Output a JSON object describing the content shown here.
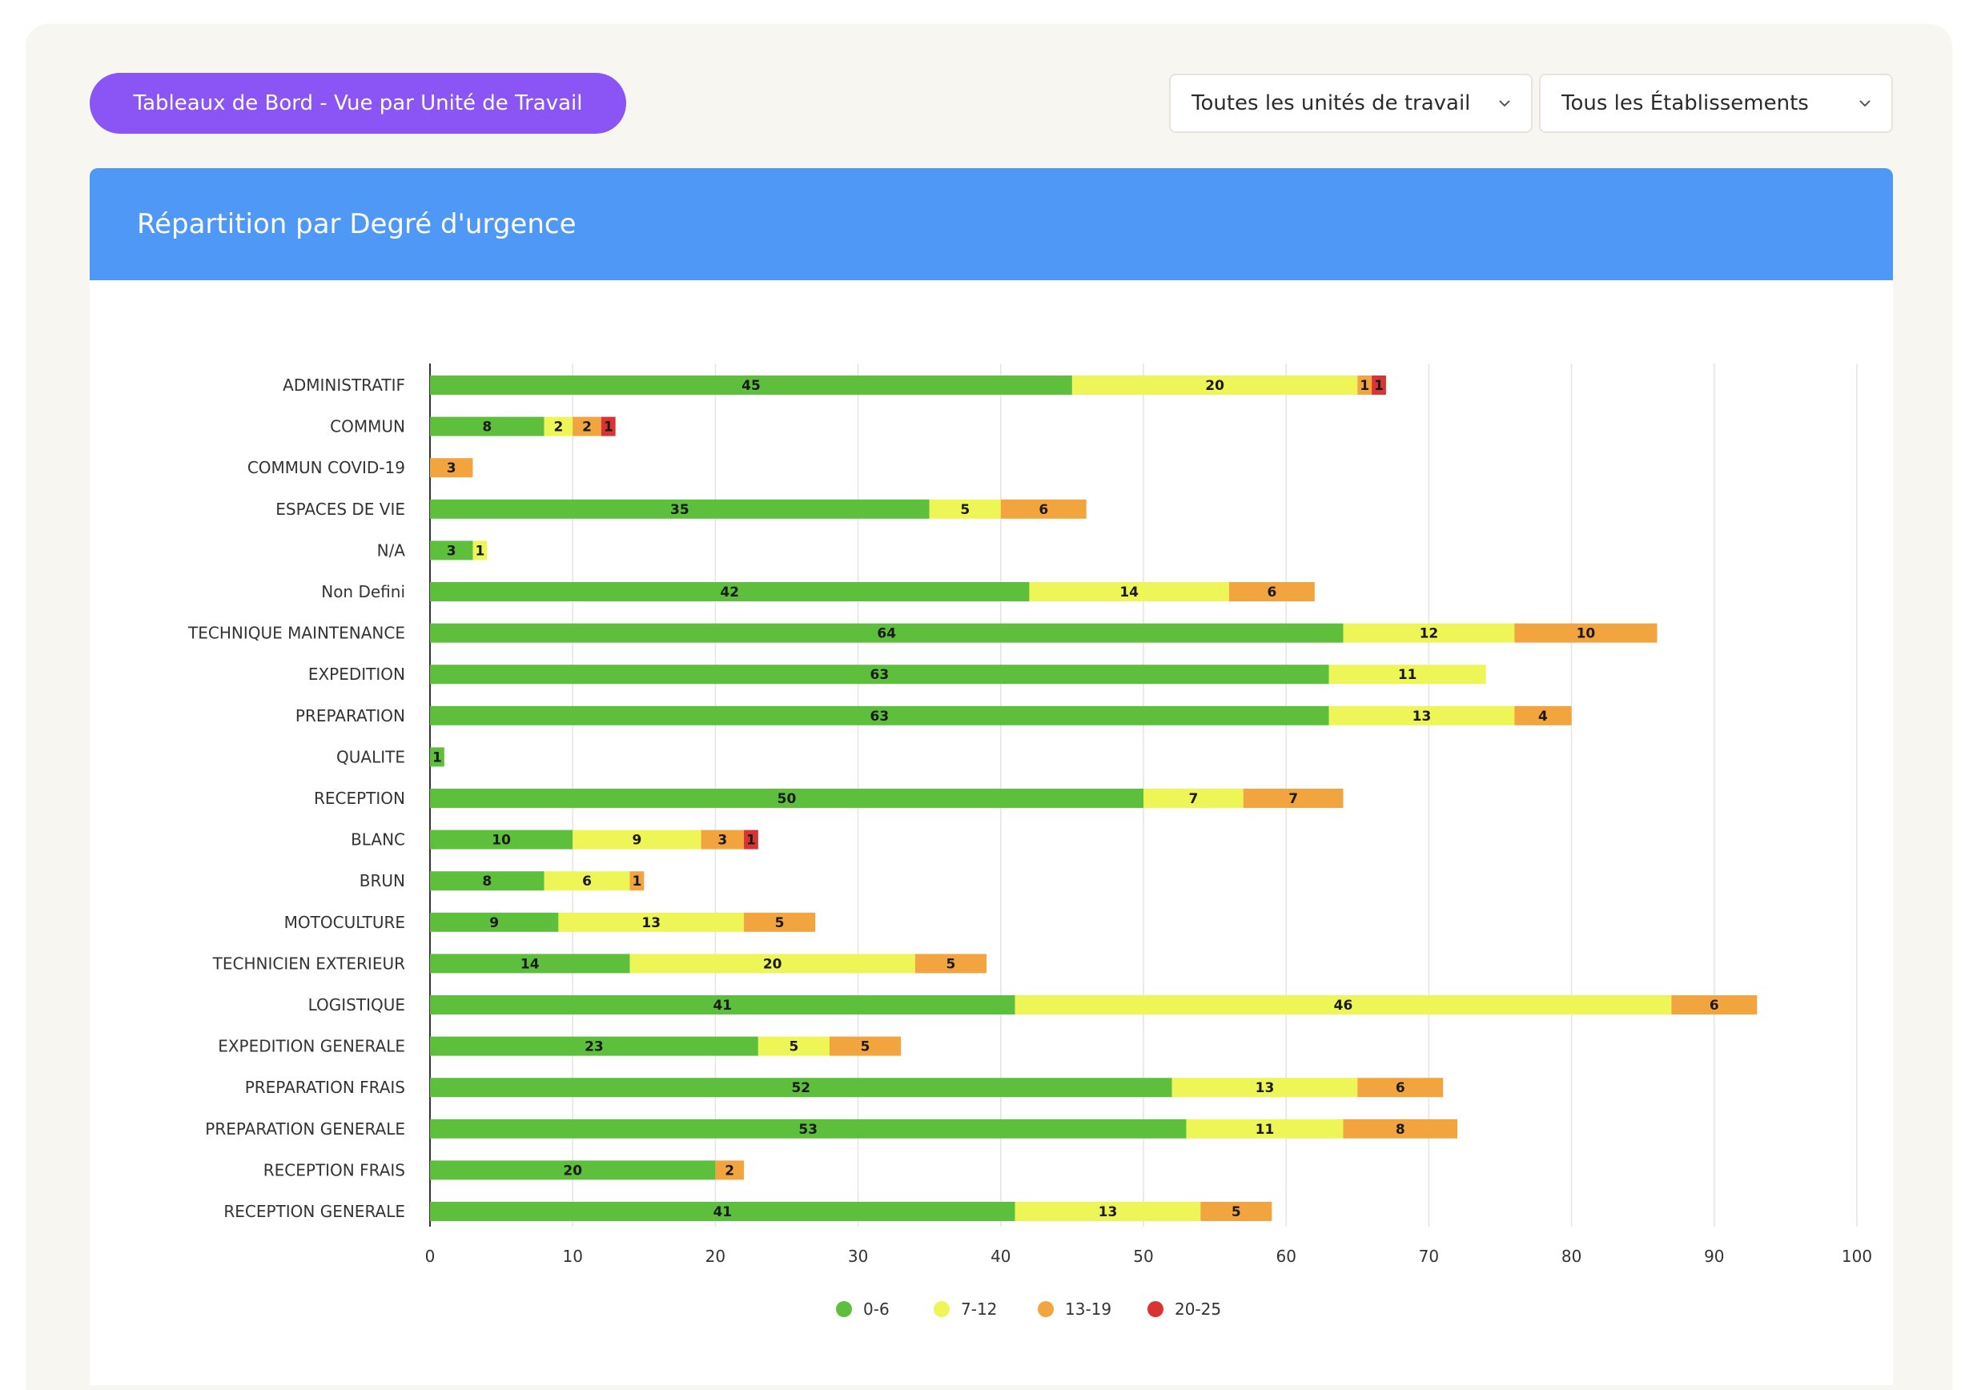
{
  "header": {
    "dashboard_button_label": "Tableaux de Bord - Vue par Unité de Travail",
    "unit_select_value": "Toutes les unités de travail",
    "establishment_select_value": "Tous les Établissements",
    "dropdown_icon": "chevron-down-icon"
  },
  "card": {
    "title": "Répartition par Degré d'urgence",
    "header_color": "#4f98f6"
  },
  "colors": {
    "button": "#8b55f6",
    "series": [
      "#5dbf3b",
      "#eef556",
      "#f2a53e",
      "#d93434"
    ]
  },
  "chart_data": {
    "type": "bar",
    "orientation": "horizontal",
    "stacked": true,
    "title": "Répartition par Degré d'urgence",
    "categories": [
      "ADMINISTRATIF",
      "COMMUN",
      "COMMUN COVID-19",
      "ESPACES DE VIE",
      "N/A",
      "Non Defini",
      "TECHNIQUE MAINTENANCE",
      "EXPEDITION",
      "PREPARATION",
      "QUALITE",
      "RECEPTION",
      "BLANC",
      "BRUN",
      "MOTOCULTURE",
      "TECHNICIEN EXTERIEUR",
      "LOGISTIQUE",
      "EXPEDITION GENERALE",
      "PREPARATION FRAIS",
      "PREPARATION GENERALE",
      "RECEPTION FRAIS",
      "RECEPTION GENERALE"
    ],
    "series": [
      {
        "name": "0-6",
        "color": "#5dbf3b",
        "values": [
          45,
          8,
          0,
          35,
          3,
          42,
          64,
          63,
          63,
          1,
          50,
          10,
          8,
          9,
          14,
          41,
          23,
          52,
          53,
          20,
          41
        ]
      },
      {
        "name": "7-12",
        "color": "#eef556",
        "values": [
          20,
          2,
          0,
          5,
          1,
          14,
          12,
          11,
          13,
          0,
          7,
          9,
          6,
          13,
          20,
          46,
          5,
          13,
          11,
          0,
          13
        ]
      },
      {
        "name": "13-19",
        "color": "#f2a53e",
        "values": [
          1,
          2,
          3,
          6,
          0,
          6,
          10,
          0,
          4,
          0,
          7,
          3,
          1,
          5,
          5,
          6,
          5,
          6,
          8,
          2,
          5
        ]
      },
      {
        "name": "20-25",
        "color": "#d93434",
        "values": [
          1,
          1,
          0,
          0,
          0,
          0,
          0,
          0,
          0,
          0,
          0,
          1,
          0,
          0,
          0,
          0,
          0,
          0,
          0,
          0,
          0
        ]
      }
    ],
    "xlim": [
      0,
      100
    ],
    "xticks": [
      0,
      10,
      20,
      30,
      40,
      50,
      60,
      70,
      80,
      90,
      100
    ],
    "grid": true,
    "legend": "bottom-center",
    "data_labels": true
  }
}
